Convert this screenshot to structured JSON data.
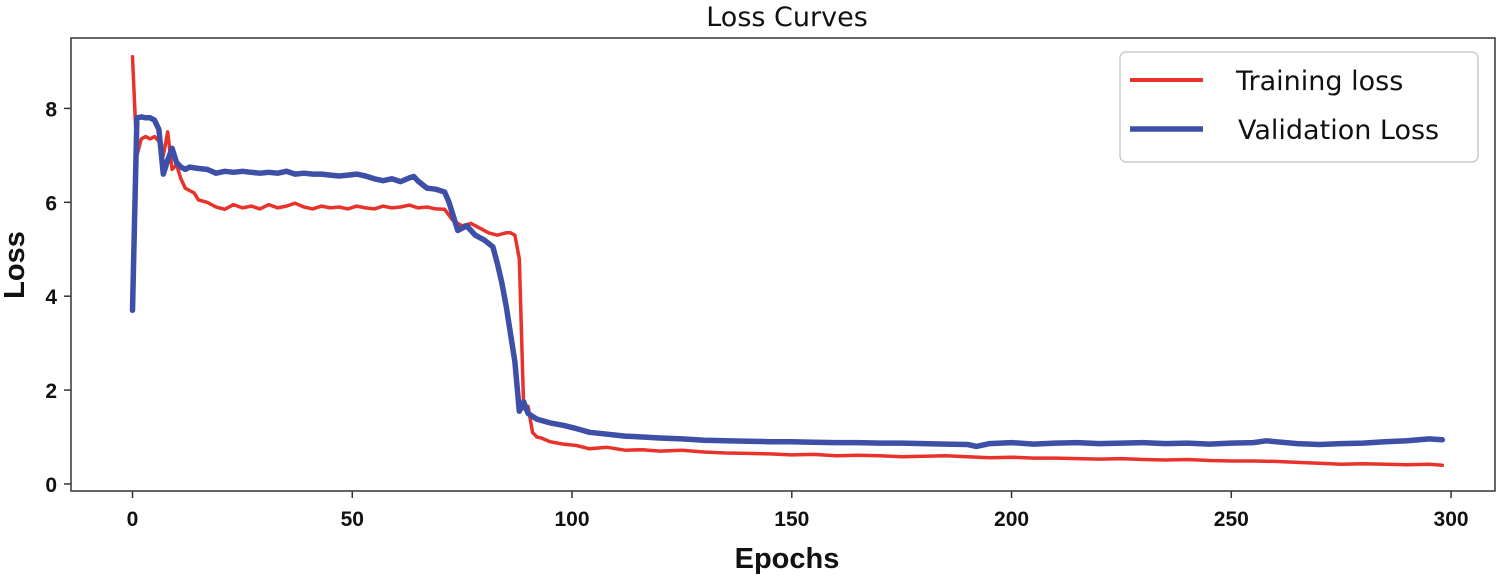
{
  "chart_data": {
    "type": "line",
    "title": "Loss Curves",
    "xlabel": "Epochs",
    "ylabel": "Loss",
    "xlim": [
      -14,
      310
    ],
    "ylim": [
      -0.15,
      9.5
    ],
    "x_ticks": [
      0,
      50,
      100,
      150,
      200,
      250,
      300
    ],
    "y_ticks": [
      0,
      2,
      4,
      6,
      8
    ],
    "grid": false,
    "legend_position": "top-right",
    "series": [
      {
        "name": "Training loss",
        "color": "#e8322a",
        "points": [
          [
            0,
            9.1
          ],
          [
            1,
            7.0
          ],
          [
            2,
            7.35
          ],
          [
            3,
            7.4
          ],
          [
            4,
            7.35
          ],
          [
            5,
            7.4
          ],
          [
            6,
            7.3
          ],
          [
            7,
            7.0
          ],
          [
            8,
            7.5
          ],
          [
            9,
            6.7
          ],
          [
            10,
            6.8
          ],
          [
            11,
            6.5
          ],
          [
            12,
            6.3
          ],
          [
            13,
            6.25
          ],
          [
            14,
            6.2
          ],
          [
            15,
            6.05
          ],
          [
            17,
            6.0
          ],
          [
            19,
            5.9
          ],
          [
            21,
            5.85
          ],
          [
            23,
            5.95
          ],
          [
            25,
            5.88
          ],
          [
            27,
            5.92
          ],
          [
            29,
            5.86
          ],
          [
            31,
            5.95
          ],
          [
            33,
            5.88
          ],
          [
            35,
            5.92
          ],
          [
            37,
            5.98
          ],
          [
            39,
            5.9
          ],
          [
            41,
            5.86
          ],
          [
            43,
            5.92
          ],
          [
            45,
            5.88
          ],
          [
            47,
            5.9
          ],
          [
            49,
            5.86
          ],
          [
            51,
            5.92
          ],
          [
            53,
            5.88
          ],
          [
            55,
            5.86
          ],
          [
            57,
            5.92
          ],
          [
            59,
            5.88
          ],
          [
            61,
            5.9
          ],
          [
            63,
            5.94
          ],
          [
            65,
            5.88
          ],
          [
            67,
            5.9
          ],
          [
            69,
            5.86
          ],
          [
            71,
            5.85
          ],
          [
            73,
            5.6
          ],
          [
            75,
            5.5
          ],
          [
            77,
            5.55
          ],
          [
            79,
            5.45
          ],
          [
            81,
            5.35
          ],
          [
            83,
            5.3
          ],
          [
            85,
            5.35
          ],
          [
            86,
            5.35
          ],
          [
            87,
            5.3
          ],
          [
            88,
            4.8
          ],
          [
            89,
            1.6
          ],
          [
            90,
            1.65
          ],
          [
            91,
            1.1
          ],
          [
            92,
            1.0
          ],
          [
            93,
            0.98
          ],
          [
            95,
            0.9
          ],
          [
            98,
            0.85
          ],
          [
            101,
            0.82
          ],
          [
            104,
            0.75
          ],
          [
            108,
            0.78
          ],
          [
            112,
            0.72
          ],
          [
            116,
            0.73
          ],
          [
            120,
            0.7
          ],
          [
            125,
            0.72
          ],
          [
            130,
            0.68
          ],
          [
            135,
            0.66
          ],
          [
            140,
            0.65
          ],
          [
            145,
            0.64
          ],
          [
            150,
            0.62
          ],
          [
            155,
            0.63
          ],
          [
            160,
            0.6
          ],
          [
            165,
            0.61
          ],
          [
            170,
            0.6
          ],
          [
            175,
            0.58
          ],
          [
            180,
            0.59
          ],
          [
            185,
            0.6
          ],
          [
            190,
            0.58
          ],
          [
            195,
            0.56
          ],
          [
            200,
            0.57
          ],
          [
            205,
            0.55
          ],
          [
            210,
            0.55
          ],
          [
            215,
            0.54
          ],
          [
            220,
            0.53
          ],
          [
            225,
            0.54
          ],
          [
            230,
            0.52
          ],
          [
            235,
            0.51
          ],
          [
            240,
            0.52
          ],
          [
            245,
            0.5
          ],
          [
            250,
            0.49
          ],
          [
            255,
            0.49
          ],
          [
            260,
            0.48
          ],
          [
            265,
            0.46
          ],
          [
            270,
            0.44
          ],
          [
            275,
            0.42
          ],
          [
            280,
            0.43
          ],
          [
            285,
            0.42
          ],
          [
            290,
            0.41
          ],
          [
            295,
            0.42
          ],
          [
            298,
            0.4
          ]
        ]
      },
      {
        "name": "Validation Loss",
        "color": "#3d4fa6",
        "points": [
          [
            0,
            3.7
          ],
          [
            1,
            7.8
          ],
          [
            2,
            7.82
          ],
          [
            3,
            7.8
          ],
          [
            4,
            7.8
          ],
          [
            5,
            7.75
          ],
          [
            6,
            7.55
          ],
          [
            7,
            6.6
          ],
          [
            8,
            6.9
          ],
          [
            9,
            7.15
          ],
          [
            10,
            6.85
          ],
          [
            11,
            6.75
          ],
          [
            12,
            6.7
          ],
          [
            13,
            6.75
          ],
          [
            15,
            6.72
          ],
          [
            17,
            6.7
          ],
          [
            19,
            6.62
          ],
          [
            21,
            6.66
          ],
          [
            23,
            6.64
          ],
          [
            25,
            6.66
          ],
          [
            27,
            6.64
          ],
          [
            29,
            6.62
          ],
          [
            31,
            6.64
          ],
          [
            33,
            6.62
          ],
          [
            35,
            6.66
          ],
          [
            37,
            6.6
          ],
          [
            39,
            6.62
          ],
          [
            41,
            6.6
          ],
          [
            43,
            6.6
          ],
          [
            45,
            6.58
          ],
          [
            47,
            6.56
          ],
          [
            49,
            6.58
          ],
          [
            51,
            6.6
          ],
          [
            53,
            6.56
          ],
          [
            55,
            6.5
          ],
          [
            57,
            6.46
          ],
          [
            59,
            6.5
          ],
          [
            61,
            6.44
          ],
          [
            63,
            6.52
          ],
          [
            64,
            6.55
          ],
          [
            65,
            6.45
          ],
          [
            67,
            6.3
          ],
          [
            69,
            6.28
          ],
          [
            71,
            6.22
          ],
          [
            72,
            6.0
          ],
          [
            74,
            5.4
          ],
          [
            76,
            5.5
          ],
          [
            78,
            5.3
          ],
          [
            80,
            5.2
          ],
          [
            82,
            5.05
          ],
          [
            83,
            4.7
          ],
          [
            84,
            4.3
          ],
          [
            85,
            3.8
          ],
          [
            86,
            3.2
          ],
          [
            87,
            2.6
          ],
          [
            88,
            1.55
          ],
          [
            89,
            1.75
          ],
          [
            90,
            1.5
          ],
          [
            92,
            1.38
          ],
          [
            95,
            1.3
          ],
          [
            98,
            1.25
          ],
          [
            101,
            1.18
          ],
          [
            104,
            1.1
          ],
          [
            108,
            1.06
          ],
          [
            112,
            1.02
          ],
          [
            116,
            1.0
          ],
          [
            120,
            0.98
          ],
          [
            125,
            0.96
          ],
          [
            130,
            0.93
          ],
          [
            135,
            0.92
          ],
          [
            140,
            0.91
          ],
          [
            145,
            0.9
          ],
          [
            150,
            0.9
          ],
          [
            155,
            0.89
          ],
          [
            160,
            0.88
          ],
          [
            165,
            0.88
          ],
          [
            170,
            0.87
          ],
          [
            175,
            0.87
          ],
          [
            180,
            0.86
          ],
          [
            185,
            0.85
          ],
          [
            190,
            0.84
          ],
          [
            192,
            0.8
          ],
          [
            195,
            0.86
          ],
          [
            200,
            0.88
          ],
          [
            205,
            0.85
          ],
          [
            210,
            0.87
          ],
          [
            215,
            0.88
          ],
          [
            220,
            0.86
          ],
          [
            225,
            0.87
          ],
          [
            230,
            0.88
          ],
          [
            235,
            0.86
          ],
          [
            240,
            0.87
          ],
          [
            245,
            0.85
          ],
          [
            250,
            0.87
          ],
          [
            255,
            0.88
          ],
          [
            258,
            0.92
          ],
          [
            260,
            0.9
          ],
          [
            265,
            0.86
          ],
          [
            270,
            0.84
          ],
          [
            275,
            0.86
          ],
          [
            280,
            0.87
          ],
          [
            285,
            0.9
          ],
          [
            290,
            0.92
          ],
          [
            295,
            0.96
          ],
          [
            298,
            0.94
          ]
        ]
      }
    ]
  }
}
